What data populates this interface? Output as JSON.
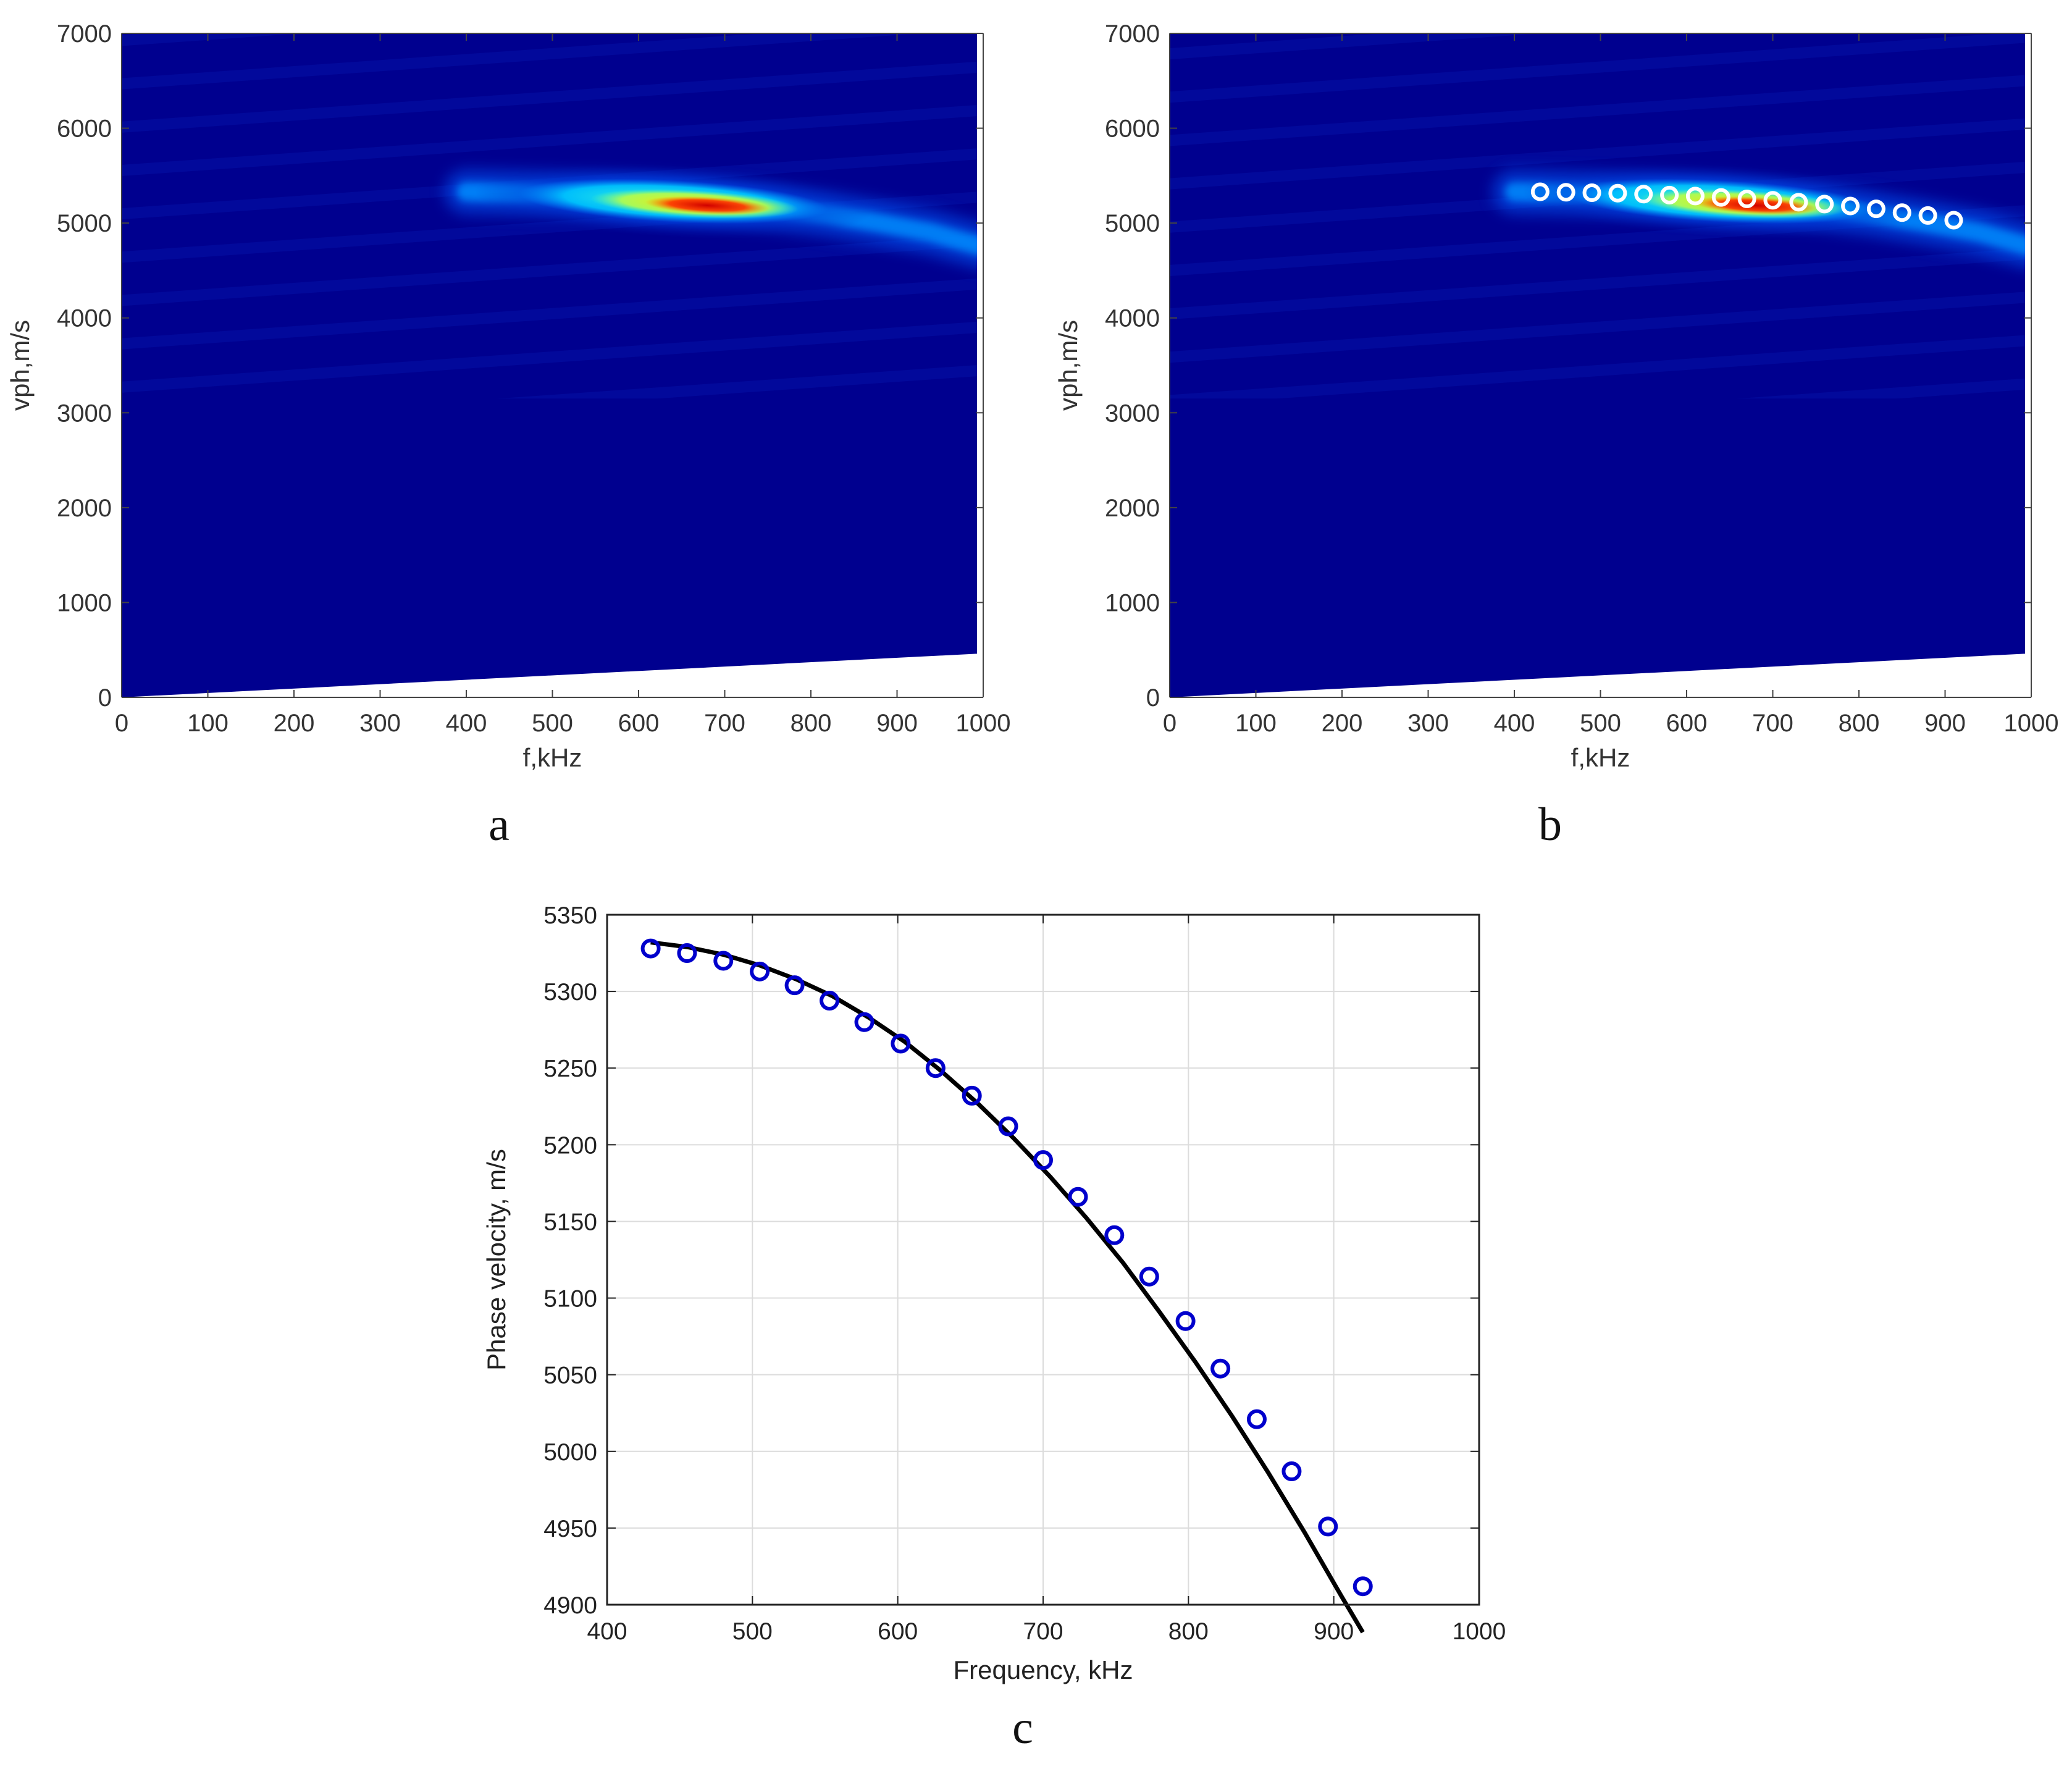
{
  "panels": [
    {
      "id": "a",
      "letter": "a",
      "chart_data": {
        "type": "heatmap",
        "xlabel": "f,kHz",
        "ylabel": "vph,m/s",
        "xlim": [
          0,
          1000
        ],
        "ylim": [
          0,
          7000
        ],
        "xticks": [
          "0",
          "100",
          "200",
          "300",
          "400",
          "500",
          "600",
          "700",
          "800",
          "900",
          "1000"
        ],
        "yticks": [
          "0",
          "1000",
          "2000",
          "3000",
          "4000",
          "5000",
          "6000",
          "7000"
        ],
        "colormap": "jet",
        "background_color": "#00008f",
        "ridge": {
          "f_khz": [
            400,
            480,
            560,
            640,
            700,
            760,
            820,
            880,
            940,
            1000
          ],
          "vph_ms": [
            5330,
            5310,
            5290,
            5250,
            5210,
            5160,
            5090,
            5000,
            4900,
            4750
          ]
        },
        "peak": {
          "f_khz": 680,
          "vph_ms": 5200
        }
      }
    },
    {
      "id": "b",
      "letter": "b",
      "chart_data": {
        "type": "heatmap",
        "xlabel": "f,kHz",
        "ylabel": "vph,m/s",
        "xlim": [
          0,
          1000
        ],
        "ylim": [
          0,
          7000
        ],
        "xticks": [
          "0",
          "100",
          "200",
          "300",
          "400",
          "500",
          "600",
          "700",
          "800",
          "900",
          "1000"
        ],
        "yticks": [
          "0",
          "1000",
          "2000",
          "3000",
          "4000",
          "5000",
          "6000",
          "7000"
        ],
        "colormap": "jet",
        "background_color": "#00008f",
        "ridge": {
          "f_khz": [
            400,
            480,
            560,
            640,
            700,
            760,
            820,
            880,
            940,
            1000
          ],
          "vph_ms": [
            5330,
            5310,
            5290,
            5250,
            5210,
            5160,
            5090,
            5000,
            4900,
            4750
          ]
        },
        "markers": {
          "style": "open-circle",
          "f_khz": [
            430,
            460,
            490,
            520,
            550,
            580,
            610,
            640,
            670,
            700,
            730,
            760,
            790,
            820,
            850,
            880,
            910
          ],
          "vph_ms": [
            5330,
            5325,
            5320,
            5315,
            5305,
            5295,
            5285,
            5270,
            5255,
            5240,
            5220,
            5200,
            5180,
            5150,
            5110,
            5080,
            5030
          ]
        }
      }
    },
    {
      "id": "c",
      "letter": "c",
      "chart_data": {
        "type": "line",
        "xlabel": "Frequency, kHz",
        "ylabel": "Phase velocity, m/s",
        "xlim": [
          400,
          1000
        ],
        "ylim": [
          4900,
          5350
        ],
        "xticks": [
          "400",
          "500",
          "600",
          "700",
          "800",
          "900",
          "1000"
        ],
        "yticks": [
          "4900",
          "4950",
          "5000",
          "5050",
          "5100",
          "5150",
          "5200",
          "5250",
          "5300",
          "5350"
        ],
        "grid": true,
        "series": [
          {
            "style": "line",
            "color": "#000000",
            "x": [
              430,
              455,
              480,
              505,
              530,
              555,
              580,
              605,
              630,
              655,
              680,
              705,
              730,
              755,
              780,
              805,
              830,
              855,
              880,
              905,
              920
            ],
            "y": [
              5332,
              5329,
              5324,
              5317,
              5308,
              5297,
              5283,
              5267,
              5248,
              5227,
              5204,
              5179,
              5152,
              5123,
              5091,
              5058,
              5023,
              4986,
              4947,
              4906,
              4882
            ]
          },
          {
            "style": "markers",
            "marker": "open-circle",
            "color": "#0000cc",
            "x": [
              430,
              455,
              480,
              505,
              529,
              553,
              577,
              602,
              626,
              651,
              676,
              700,
              724,
              749,
              773,
              798,
              822,
              847,
              871,
              896,
              920
            ],
            "y": [
              5328,
              5325,
              5320,
              5313,
              5304,
              5294,
              5280,
              5266,
              5250,
              5232,
              5212,
              5190,
              5166,
              5141,
              5114,
              5085,
              5054,
              5021,
              4987,
              4951,
              4912
            ]
          }
        ]
      }
    }
  ]
}
